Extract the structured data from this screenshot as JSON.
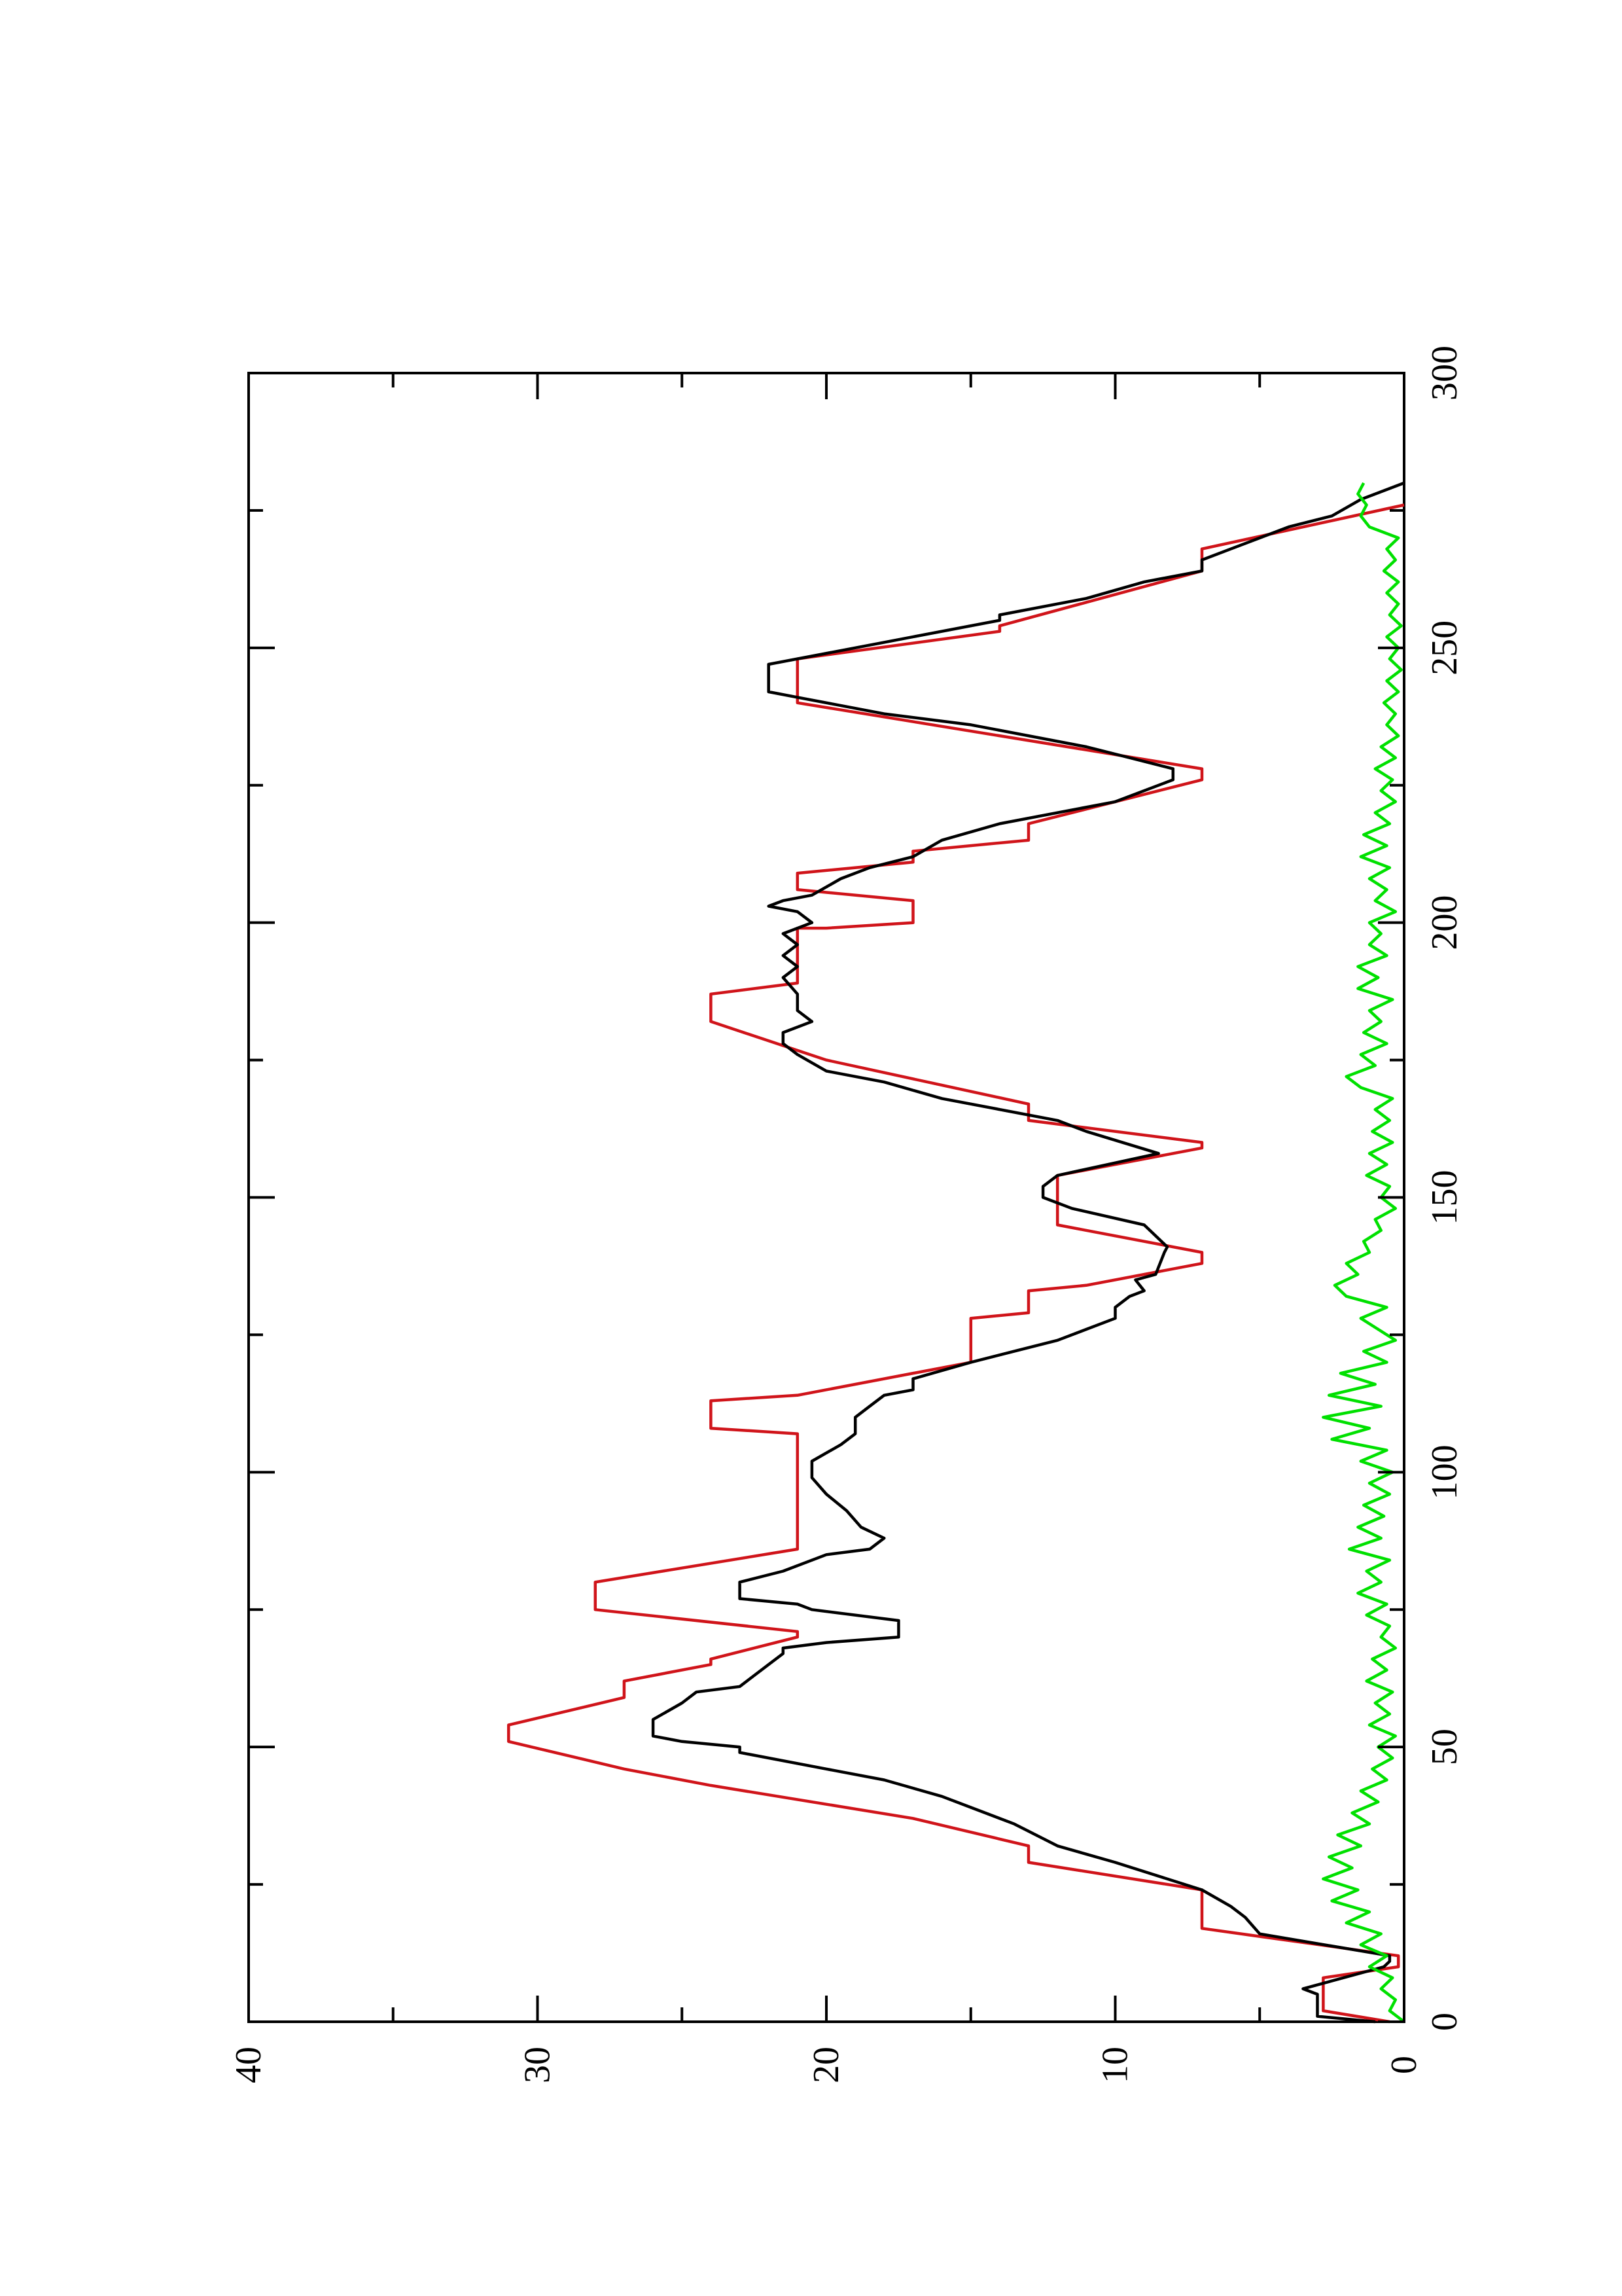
{
  "chart_data": {
    "type": "line",
    "title": "",
    "xlabel": "",
    "ylabel": "",
    "xlim": [
      0,
      300
    ],
    "ylim": [
      0,
      40
    ],
    "x_ticks": [
      "0",
      "50",
      "100",
      "150",
      "200",
      "250",
      "300"
    ],
    "y_ticks": [
      "0",
      "10",
      "20",
      "30",
      "40"
    ],
    "grid": false,
    "legend": "none",
    "orientation": "rotated-90-counterclockwise",
    "series": [
      {
        "color": "#d0141a",
        "points": [
          [
            0,
            0.5
          ],
          [
            2,
            2.8
          ],
          [
            8,
            2.8
          ],
          [
            10,
            0.2
          ],
          [
            11,
            0.2
          ],
          [
            12,
            0.2
          ],
          [
            17,
            7
          ],
          [
            24,
            7
          ],
          [
            29,
            13
          ],
          [
            32,
            13
          ],
          [
            37,
            17
          ],
          [
            43,
            24
          ],
          [
            46,
            27
          ],
          [
            51,
            31
          ],
          [
            54,
            31
          ],
          [
            59,
            27
          ],
          [
            62,
            27
          ],
          [
            65,
            24
          ],
          [
            66,
            24
          ],
          [
            70,
            21
          ],
          [
            71,
            21
          ],
          [
            75,
            28
          ],
          [
            80,
            28
          ],
          [
            86,
            21
          ],
          [
            107,
            21
          ],
          [
            108,
            24
          ],
          [
            113,
            24
          ],
          [
            114,
            21
          ],
          [
            120,
            15
          ],
          [
            128,
            15
          ],
          [
            129,
            13
          ],
          [
            133,
            13
          ],
          [
            134,
            11
          ],
          [
            138,
            7
          ],
          [
            140,
            7
          ],
          [
            145,
            12
          ],
          [
            154,
            12
          ],
          [
            159,
            7
          ],
          [
            160,
            7
          ],
          [
            164,
            13
          ],
          [
            167,
            13
          ],
          [
            175,
            20
          ],
          [
            182,
            24
          ],
          [
            187,
            24
          ],
          [
            189,
            21
          ],
          [
            199,
            21
          ],
          [
            199,
            20
          ],
          [
            200,
            17
          ],
          [
            204,
            17
          ],
          [
            206,
            21
          ],
          [
            209,
            21
          ],
          [
            211,
            17
          ],
          [
            213,
            17
          ],
          [
            215,
            13
          ],
          [
            218,
            13
          ],
          [
            226,
            7
          ],
          [
            228,
            7
          ],
          [
            240,
            21
          ],
          [
            248,
            21
          ],
          [
            253,
            14
          ],
          [
            254,
            14
          ],
          [
            264,
            7
          ],
          [
            268,
            7
          ],
          [
            276,
            0
          ]
        ]
      },
      {
        "color": "#000000",
        "points": [
          [
            0,
            1
          ],
          [
            1,
            3
          ],
          [
            5,
            3
          ],
          [
            6,
            3.5
          ],
          [
            10,
            0.7
          ],
          [
            11,
            0.5
          ],
          [
            12,
            0.5
          ],
          [
            16,
            5
          ],
          [
            19,
            5.5
          ],
          [
            21,
            6
          ],
          [
            24,
            7
          ],
          [
            29,
            10
          ],
          [
            32,
            12
          ],
          [
            36,
            13.5
          ],
          [
            39,
            15
          ],
          [
            41,
            16
          ],
          [
            44,
            18
          ],
          [
            46,
            20
          ],
          [
            49,
            23
          ],
          [
            50,
            23
          ],
          [
            51,
            25
          ],
          [
            52,
            26
          ],
          [
            55,
            26
          ],
          [
            58,
            25
          ],
          [
            60,
            24.5
          ],
          [
            61,
            23
          ],
          [
            63,
            22.5
          ],
          [
            65,
            22
          ],
          [
            67,
            21.5
          ],
          [
            68,
            21.5
          ],
          [
            69,
            20
          ],
          [
            70,
            17.5
          ],
          [
            73,
            17.5
          ],
          [
            75,
            20.5
          ],
          [
            76,
            21
          ],
          [
            77,
            23
          ],
          [
            80,
            23
          ],
          [
            82,
            21.5
          ],
          [
            85,
            20
          ],
          [
            86,
            18.5
          ],
          [
            88,
            18
          ],
          [
            90,
            18.8
          ],
          [
            93,
            19.3
          ],
          [
            96,
            20
          ],
          [
            99,
            20.5
          ],
          [
            102,
            20.5
          ],
          [
            105,
            19.5
          ],
          [
            107,
            19
          ],
          [
            110,
            19
          ],
          [
            112,
            18.5
          ],
          [
            114,
            18
          ],
          [
            115,
            17
          ],
          [
            117,
            17
          ],
          [
            120,
            15
          ],
          [
            122,
            13.5
          ],
          [
            124,
            12
          ],
          [
            126,
            11
          ],
          [
            128,
            10
          ],
          [
            130,
            10
          ],
          [
            132,
            9.5
          ],
          [
            133,
            9
          ],
          [
            135,
            9.3
          ],
          [
            136,
            8.6
          ],
          [
            140,
            8.3
          ],
          [
            141,
            8.2
          ],
          [
            145,
            9
          ],
          [
            148,
            11.5
          ],
          [
            150,
            12.5
          ],
          [
            152,
            12.5
          ],
          [
            154,
            12
          ],
          [
            158,
            8.5
          ],
          [
            162,
            11
          ],
          [
            164,
            12
          ],
          [
            168,
            16
          ],
          [
            171,
            18
          ],
          [
            173,
            20
          ],
          [
            176,
            21
          ],
          [
            178,
            21.5
          ],
          [
            180,
            21.5
          ],
          [
            182,
            20.5
          ],
          [
            184,
            21
          ],
          [
            187,
            21
          ],
          [
            190,
            21.5
          ],
          [
            192,
            21
          ],
          [
            194,
            21.5
          ],
          [
            196,
            21
          ],
          [
            198,
            21.5
          ],
          [
            200,
            20.5
          ],
          [
            202,
            21
          ],
          [
            203,
            22
          ],
          [
            204,
            21.5
          ],
          [
            205,
            20.5
          ],
          [
            208,
            19.5
          ],
          [
            210,
            18.5
          ],
          [
            212,
            17
          ],
          [
            215,
            16
          ],
          [
            218,
            14
          ],
          [
            222,
            10
          ],
          [
            226,
            8
          ],
          [
            228,
            8
          ],
          [
            232,
            11
          ],
          [
            236,
            15
          ],
          [
            238,
            18
          ],
          [
            241,
            21
          ],
          [
            242,
            22
          ],
          [
            247,
            22
          ],
          [
            251,
            18
          ],
          [
            255,
            14
          ],
          [
            256,
            14
          ],
          [
            259,
            11
          ],
          [
            262,
            9
          ],
          [
            264,
            7
          ],
          [
            266,
            7
          ],
          [
            268,
            6
          ],
          [
            270,
            5
          ],
          [
            272,
            4
          ],
          [
            274,
            2.5
          ],
          [
            277,
            1.5
          ],
          [
            280,
            0
          ]
        ]
      },
      {
        "color": "#00e000",
        "points": [
          [
            0,
            0
          ],
          [
            2,
            0.5
          ],
          [
            4,
            0.3
          ],
          [
            6,
            0.8
          ],
          [
            8,
            0.4
          ],
          [
            10,
            1.2
          ],
          [
            12,
            0.6
          ],
          [
            14,
            1.5
          ],
          [
            16,
            0.8
          ],
          [
            18,
            2
          ],
          [
            20,
            1.2
          ],
          [
            22,
            2.5
          ],
          [
            24,
            1.6
          ],
          [
            26,
            2.8
          ],
          [
            28,
            1.8
          ],
          [
            30,
            2.6
          ],
          [
            32,
            1.5
          ],
          [
            34,
            2.3
          ],
          [
            36,
            1.2
          ],
          [
            38,
            1.8
          ],
          [
            40,
            0.9
          ],
          [
            42,
            1.5
          ],
          [
            44,
            0.6
          ],
          [
            46,
            1.1
          ],
          [
            48,
            0.4
          ],
          [
            50,
            0.9
          ],
          [
            52,
            0.3
          ],
          [
            54,
            1.2
          ],
          [
            56,
            0.5
          ],
          [
            58,
            1
          ],
          [
            60,
            0.4
          ],
          [
            62,
            1.3
          ],
          [
            64,
            0.6
          ],
          [
            66,
            1.1
          ],
          [
            68,
            0.3
          ],
          [
            70,
            0.8
          ],
          [
            72,
            0.5
          ],
          [
            74,
            1.3
          ],
          [
            76,
            0.6
          ],
          [
            78,
            1.6
          ],
          [
            80,
            0.8
          ],
          [
            82,
            1.3
          ],
          [
            84,
            0.5
          ],
          [
            86,
            1.9
          ],
          [
            88,
            0.8
          ],
          [
            90,
            1.6
          ],
          [
            92,
            0.7
          ],
          [
            94,
            1.4
          ],
          [
            96,
            0.5
          ],
          [
            98,
            1.2
          ],
          [
            100,
            0.4
          ],
          [
            102,
            1.5
          ],
          [
            104,
            0.6
          ],
          [
            106,
            2.5
          ],
          [
            108,
            1.2
          ],
          [
            110,
            2.8
          ],
          [
            112,
            0.8
          ],
          [
            114,
            2.6
          ],
          [
            116,
            1
          ],
          [
            118,
            2.2
          ],
          [
            120,
            0.6
          ],
          [
            122,
            1.4
          ],
          [
            124,
            0.3
          ],
          [
            126,
            0.9
          ],
          [
            128,
            1.5
          ],
          [
            130,
            0.6
          ],
          [
            132,
            2
          ],
          [
            134,
            2.4
          ],
          [
            136,
            1.6
          ],
          [
            138,
            2
          ],
          [
            140,
            1.2
          ],
          [
            142,
            1.4
          ],
          [
            144,
            0.8
          ],
          [
            146,
            1
          ],
          [
            148,
            0.3
          ],
          [
            150,
            0.8
          ],
          [
            152,
            0.5
          ],
          [
            154,
            1.3
          ],
          [
            156,
            0.6
          ],
          [
            158,
            1.2
          ],
          [
            160,
            0.4
          ],
          [
            162,
            1.1
          ],
          [
            164,
            0.5
          ],
          [
            166,
            1
          ],
          [
            168,
            0.4
          ],
          [
            170,
            1.5
          ],
          [
            172,
            2
          ],
          [
            174,
            1
          ],
          [
            176,
            1.5
          ],
          [
            178,
            0.6
          ],
          [
            180,
            1.4
          ],
          [
            182,
            0.8
          ],
          [
            184,
            1.2
          ],
          [
            186,
            0.4
          ],
          [
            188,
            1.6
          ],
          [
            190,
            0.9
          ],
          [
            192,
            1.6
          ],
          [
            194,
            0.6
          ],
          [
            196,
            1.2
          ],
          [
            198,
            0.8
          ],
          [
            200,
            1.2
          ],
          [
            202,
            0.3
          ],
          [
            204,
            1
          ],
          [
            206,
            0.6
          ],
          [
            208,
            1.2
          ],
          [
            210,
            0.5
          ],
          [
            212,
            1.5
          ],
          [
            214,
            0.6
          ],
          [
            216,
            1.4
          ],
          [
            218,
            0.5
          ],
          [
            220,
            1
          ],
          [
            222,
            0.3
          ],
          [
            224,
            0.8
          ],
          [
            226,
            0.4
          ],
          [
            228,
            1
          ],
          [
            230,
            0.3
          ],
          [
            232,
            0.8
          ],
          [
            234,
            0.2
          ],
          [
            236,
            0.6
          ],
          [
            238,
            0.3
          ],
          [
            240,
            0.7
          ],
          [
            242,
            0.2
          ],
          [
            244,
            0.6
          ],
          [
            246,
            0.1
          ],
          [
            248,
            0.5
          ],
          [
            250,
            0.2
          ],
          [
            252,
            0.6
          ],
          [
            254,
            0.1
          ],
          [
            256,
            0.5
          ],
          [
            258,
            0.2
          ],
          [
            260,
            0.6
          ],
          [
            262,
            0.2
          ],
          [
            264,
            0.7
          ],
          [
            266,
            0.3
          ],
          [
            268,
            0.6
          ],
          [
            270,
            0.2
          ],
          [
            272,
            1.2
          ],
          [
            274,
            1.5
          ],
          [
            276,
            1.3
          ],
          [
            278,
            1.6
          ],
          [
            280,
            1.4
          ]
        ]
      }
    ]
  }
}
